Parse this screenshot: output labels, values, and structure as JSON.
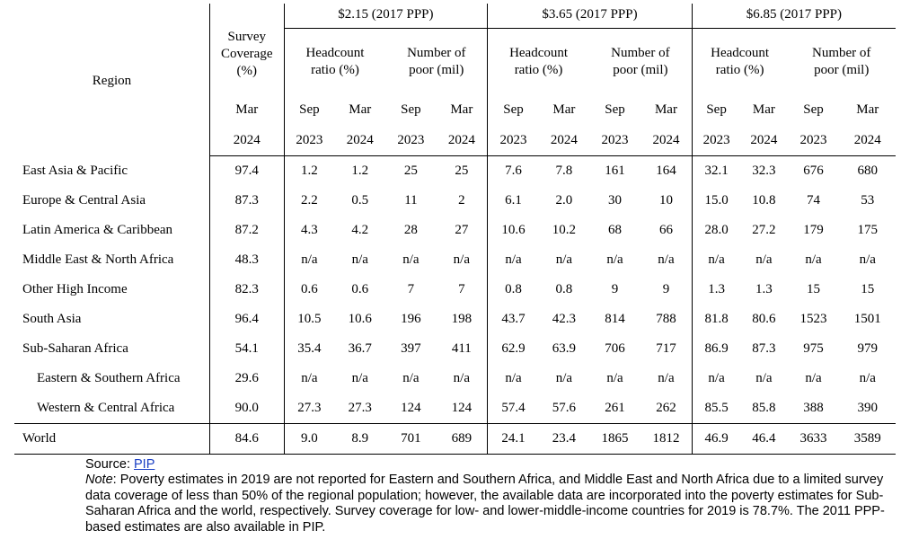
{
  "table": {
    "region_header": "Region",
    "coverage_header": "Survey Coverage (%)",
    "coverage_month": "Mar",
    "coverage_year": "2024",
    "groups": [
      "$2.15 (2017 PPP)",
      "$3.65 (2017 PPP)",
      "$6.85 (2017 PPP)"
    ],
    "sub_headcount": "Headcount ratio (%)",
    "sub_poor": "Number of poor (mil)",
    "months": [
      "Sep",
      "Mar"
    ],
    "years": [
      "2023",
      "2024"
    ],
    "rows": [
      {
        "region": "East Asia & Pacific",
        "cells": [
          "97.4",
          "1.2",
          "1.2",
          "25",
          "25",
          "7.6",
          "7.8",
          "161",
          "164",
          "32.1",
          "32.3",
          "676",
          "680"
        ]
      },
      {
        "region": "Europe & Central Asia",
        "cells": [
          "87.3",
          "2.2",
          "0.5",
          "11",
          "2",
          "6.1",
          "2.0",
          "30",
          "10",
          "15.0",
          "10.8",
          "74",
          "53"
        ]
      },
      {
        "region": "Latin America & Caribbean",
        "cells": [
          "87.2",
          "4.3",
          "4.2",
          "28",
          "27",
          "10.6",
          "10.2",
          "68",
          "66",
          "28.0",
          "27.2",
          "179",
          "175"
        ]
      },
      {
        "region": "Middle East & North Africa",
        "cells": [
          "48.3",
          "n/a",
          "n/a",
          "n/a",
          "n/a",
          "n/a",
          "n/a",
          "n/a",
          "n/a",
          "n/a",
          "n/a",
          "n/a",
          "n/a"
        ]
      },
      {
        "region": "Other High Income",
        "cells": [
          "82.3",
          "0.6",
          "0.6",
          "7",
          "7",
          "0.8",
          "0.8",
          "9",
          "9",
          "1.3",
          "1.3",
          "15",
          "15"
        ]
      },
      {
        "region": "South Asia",
        "cells": [
          "96.4",
          "10.5",
          "10.6",
          "196",
          "198",
          "43.7",
          "42.3",
          "814",
          "788",
          "81.8",
          "80.6",
          "1523",
          "1501"
        ]
      },
      {
        "region": "Sub-Saharan Africa",
        "cells": [
          "54.1",
          "35.4",
          "36.7",
          "397",
          "411",
          "62.9",
          "63.9",
          "706",
          "717",
          "86.9",
          "87.3",
          "975",
          "979"
        ]
      },
      {
        "region": "Eastern & Southern Africa",
        "sub": true,
        "cells": [
          "29.6",
          "n/a",
          "n/a",
          "n/a",
          "n/a",
          "n/a",
          "n/a",
          "n/a",
          "n/a",
          "n/a",
          "n/a",
          "n/a",
          "n/a"
        ]
      },
      {
        "region": "Western & Central Africa",
        "sub": true,
        "cells": [
          "90.0",
          "27.3",
          "27.3",
          "124",
          "124",
          "57.4",
          "57.6",
          "261",
          "262",
          "85.5",
          "85.8",
          "388",
          "390"
        ]
      }
    ],
    "world": {
      "region": "World",
      "cells": [
        "84.6",
        "9.0",
        "8.9",
        "701",
        "689",
        "24.1",
        "23.4",
        "1865",
        "1812",
        "46.9",
        "46.4",
        "3633",
        "3589"
      ]
    }
  },
  "footer": {
    "source_label": "Source: ",
    "source_link": "PIP",
    "note_label": "Note",
    "note_text": ": Poverty estimates in 2019 are not reported for Eastern and Southern Africa, and Middle East and North Africa due to a limited survey data coverage of less than 50% of the regional population; however, the available data are incorporated into the poverty estimates for Sub-Saharan Africa and the world, respectively. Survey coverage for low- and lower-middle-income countries for 2019 is 78.7%. The 2011 PPP-based estimates are also available in PIP."
  },
  "colors": {
    "link": "#1a3fc4",
    "rule": "#000000"
  }
}
